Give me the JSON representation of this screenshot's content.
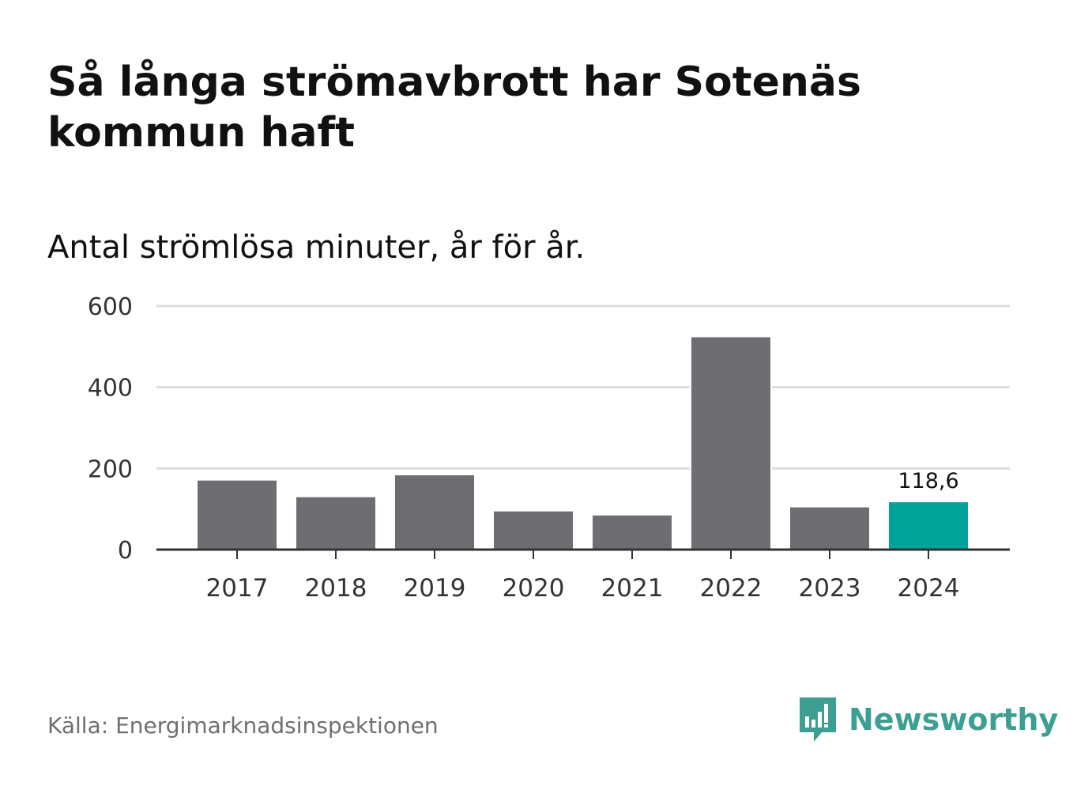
{
  "title": "Så långa strömavbrott har Sotenäs kommun haft",
  "subtitle": "Antal strömlösa minuter, år för år.",
  "source": "Källa: Energimarknadsinspektionen",
  "brand": {
    "name": "Newsworthy",
    "logo_icon": "newsworthy-bar-chart-speech-bubble-icon",
    "color": "#3c9f91"
  },
  "colors": {
    "bar": "#6e6d72",
    "highlight": "#00a398",
    "grid": "#dddddd",
    "axis": "#333333"
  },
  "chart_data": {
    "type": "bar",
    "title": "Så långa strömavbrott har Sotenäs kommun haft",
    "subtitle": "Antal strömlösa minuter, år för år.",
    "xlabel": "",
    "ylabel": "",
    "categories": [
      "2017",
      "2018",
      "2019",
      "2020",
      "2021",
      "2022",
      "2023",
      "2024"
    ],
    "values": [
      172,
      131,
      185,
      96,
      86,
      525,
      106,
      118.6
    ],
    "ylim": [
      0,
      600
    ],
    "yticks": [
      0,
      200,
      400,
      600
    ],
    "grid": true,
    "highlight_index": 7,
    "annotations": [
      {
        "category": "2024",
        "label": "118,6"
      }
    ]
  }
}
